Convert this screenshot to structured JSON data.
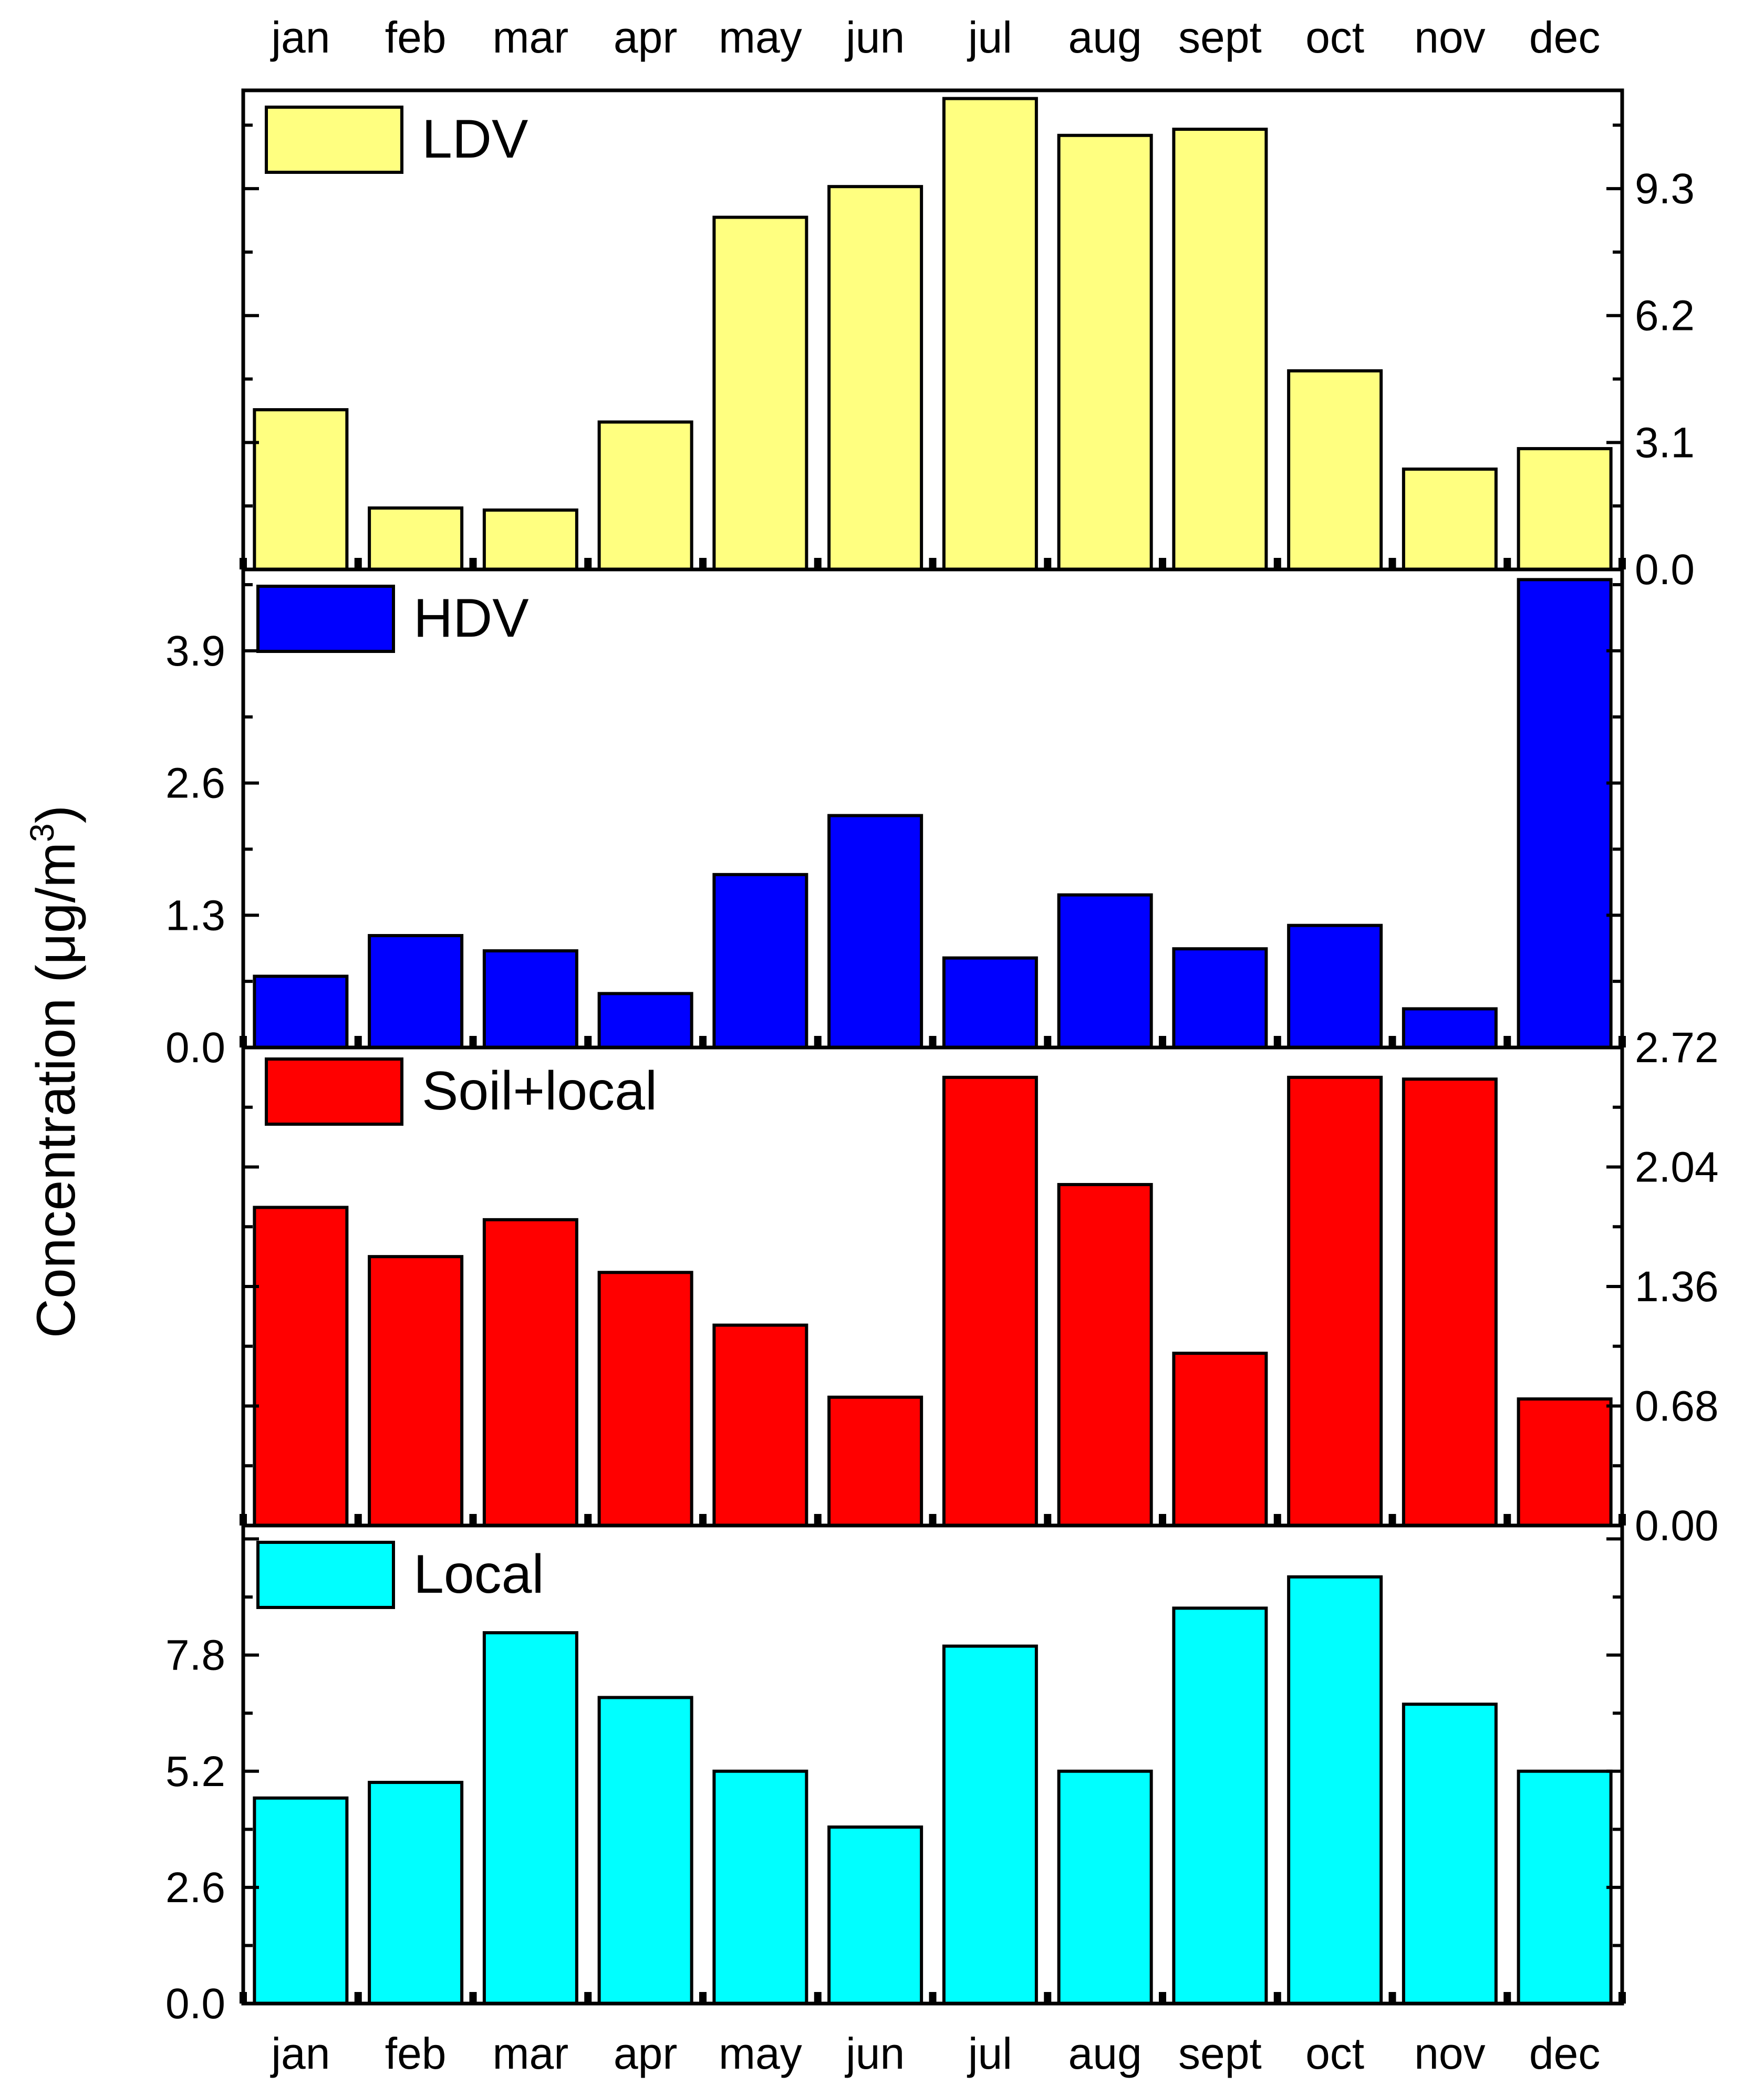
{
  "chart_data": {
    "type": "bar",
    "ylabel_main": "Concentration (μg/m",
    "ylabel_sup": "3",
    "ylabel_end": ")",
    "categories": [
      "jan",
      "feb",
      "mar",
      "apr",
      "may",
      "jun",
      "jul",
      "aug",
      "sept",
      "oct",
      "nov",
      "dec"
    ],
    "panels": [
      {
        "name": "LDV",
        "color": "#ffff80",
        "axis_side": "right",
        "ylim": [
          0,
          11.7
        ],
        "ticks": [
          "0.0",
          "3.1",
          "6.2",
          "9.3"
        ],
        "tick_values": [
          0,
          3.1,
          6.2,
          9.3
        ],
        "values": [
          3.9,
          1.5,
          1.45,
          3.6,
          8.6,
          9.35,
          11.5,
          10.6,
          10.75,
          4.85,
          2.45,
          2.95
        ]
      },
      {
        "name": "HDV",
        "color": "#0000ff",
        "axis_side": "left",
        "ylim": [
          0,
          4.7
        ],
        "ticks": [
          "0.0",
          "1.3",
          "2.6",
          "3.9"
        ],
        "tick_values": [
          0,
          1.3,
          2.6,
          3.9
        ],
        "values": [
          0.7,
          1.1,
          0.95,
          0.53,
          1.7,
          2.28,
          0.88,
          1.5,
          0.97,
          1.2,
          0.38,
          4.6
        ]
      },
      {
        "name": "Soil+local",
        "color": "#ff0000",
        "axis_side": "right",
        "ylim": [
          0,
          2.72
        ],
        "ticks": [
          "0.00",
          "0.68",
          "1.36",
          "2.04",
          "2.72"
        ],
        "tick_values": [
          0,
          0.68,
          1.36,
          2.04,
          2.72
        ],
        "values": [
          1.81,
          1.53,
          1.74,
          1.44,
          1.14,
          0.73,
          2.55,
          1.94,
          0.98,
          2.55,
          2.54,
          0.72
        ]
      },
      {
        "name": "Local",
        "color": "#00ffff",
        "axis_side": "left",
        "ylim": [
          0,
          10.7
        ],
        "ticks": [
          "0.0",
          "2.6",
          "5.2",
          "7.8"
        ],
        "tick_values": [
          0,
          2.6,
          5.2,
          7.8
        ],
        "values": [
          4.6,
          4.95,
          8.3,
          6.85,
          5.2,
          3.95,
          8.0,
          5.2,
          8.85,
          9.55,
          6.7,
          5.2
        ]
      }
    ]
  }
}
